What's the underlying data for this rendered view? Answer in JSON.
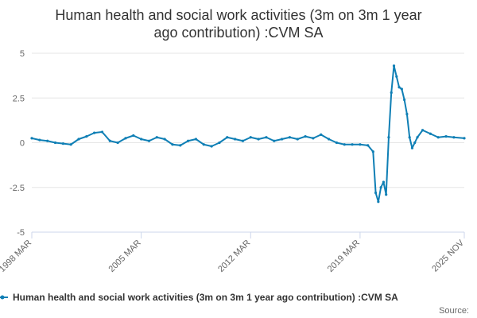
{
  "chart_data": {
    "type": "line",
    "title": "Human health and social work activities (3m on 3m 1 year ago contribution) :CVM SA",
    "xlabel": "",
    "ylabel": "",
    "ylim": [
      -5,
      5
    ],
    "yticks": [
      "5",
      "2.5",
      "0",
      "-2.5",
      "-5"
    ],
    "xticks": [
      "1998 MAR",
      "2005 MAR",
      "2012 MAR",
      "2019 MAR",
      "2025 NOV"
    ],
    "grid": true,
    "legend_position": "bottom",
    "series": [
      {
        "name": "Human health and social work activities (3m on 3m 1 year ago contribution) :CVM SA",
        "color": "#0f7fb5",
        "x": [
          "1998-03",
          "1998-09",
          "1999-03",
          "1999-09",
          "2000-03",
          "2000-09",
          "2001-03",
          "2001-09",
          "2002-03",
          "2002-09",
          "2003-03",
          "2003-09",
          "2004-03",
          "2004-09",
          "2005-03",
          "2005-09",
          "2006-03",
          "2006-09",
          "2007-03",
          "2007-09",
          "2008-03",
          "2008-09",
          "2009-03",
          "2009-09",
          "2010-03",
          "2010-09",
          "2011-03",
          "2011-09",
          "2012-03",
          "2012-09",
          "2013-03",
          "2013-09",
          "2014-03",
          "2014-09",
          "2015-03",
          "2015-09",
          "2016-03",
          "2016-09",
          "2017-03",
          "2017-09",
          "2018-03",
          "2018-09",
          "2019-03",
          "2019-09",
          "2020-01",
          "2020-03",
          "2020-05",
          "2020-07",
          "2020-09",
          "2020-11",
          "2021-01",
          "2021-03",
          "2021-05",
          "2021-07",
          "2021-09",
          "2021-11",
          "2022-01",
          "2022-03",
          "2022-05",
          "2022-07",
          "2022-09",
          "2022-11",
          "2023-03",
          "2023-09",
          "2024-03",
          "2024-09",
          "2025-03",
          "2025-11"
        ],
        "values": [
          0.25,
          0.15,
          0.1,
          0.0,
          -0.05,
          -0.1,
          0.2,
          0.35,
          0.55,
          0.6,
          0.1,
          0.0,
          0.25,
          0.4,
          0.2,
          0.1,
          0.3,
          0.2,
          -0.1,
          -0.15,
          0.1,
          0.2,
          -0.1,
          -0.2,
          0.0,
          0.3,
          0.2,
          0.1,
          0.3,
          0.2,
          0.3,
          0.1,
          0.2,
          0.3,
          0.2,
          0.35,
          0.25,
          0.45,
          0.2,
          0.0,
          -0.1,
          -0.1,
          -0.1,
          -0.15,
          -0.5,
          -2.8,
          -3.3,
          -2.5,
          -2.2,
          -2.9,
          0.3,
          2.8,
          4.3,
          3.7,
          3.1,
          3.0,
          2.4,
          1.6,
          0.3,
          -0.3,
          0.0,
          0.3,
          0.7,
          0.5,
          0.3,
          0.35,
          0.3,
          0.25
        ]
      }
    ]
  },
  "footer": {
    "source_label": "Source:"
  }
}
